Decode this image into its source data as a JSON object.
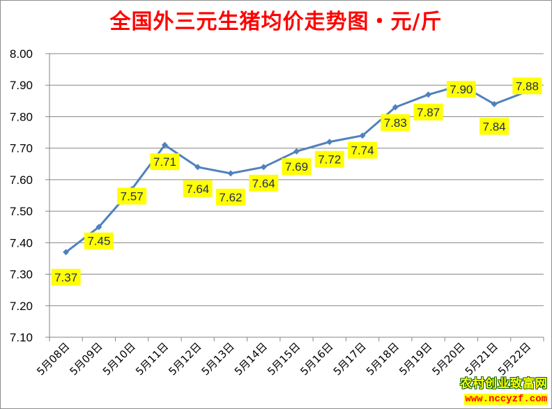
{
  "chart_data": {
    "type": "line",
    "title": "全国外三元生猪均价走势图・元/斤",
    "xlabel": "",
    "ylabel": "",
    "categories": [
      "5月08日",
      "5月09日",
      "5月10日",
      "5月11日",
      "5月12日",
      "5月13日",
      "5月14日",
      "5月15日",
      "5月16日",
      "5月17日",
      "5月18日",
      "5月19日",
      "5月20日",
      "5月21日",
      "5月22日"
    ],
    "series": [
      {
        "name": "外三元生猪均价",
        "values": [
          7.37,
          7.45,
          7.57,
          7.71,
          7.64,
          7.62,
          7.64,
          7.69,
          7.72,
          7.74,
          7.83,
          7.87,
          7.9,
          7.84,
          7.88
        ]
      }
    ],
    "data_labels": [
      "7.37",
      "7.45",
      "7.57",
      "7.71",
      "7.64",
      "7.62",
      "7.64",
      "7.69",
      "7.72",
      "7.74",
      "7.83",
      "7.87",
      "7.90",
      "7.84",
      "7.88"
    ],
    "ylim": [
      7.1,
      8.0
    ],
    "yticks": [
      "8.00",
      "7.90",
      "7.80",
      "7.70",
      "7.60",
      "7.50",
      "7.40",
      "7.30",
      "7.20",
      "7.10"
    ],
    "grid": "horizontal",
    "legend": "none",
    "colors": {
      "line": "#4f81bd",
      "label_bg": "#ffff00",
      "label_text": "#1f2a5a",
      "title": "#ff0000",
      "grid": "#868686"
    }
  },
  "header": {
    "title": "全国外三元生猪均价走势图・元/斤"
  },
  "watermark": {
    "name": "农村创业致富网",
    "url": "www.nccyzf.com"
  }
}
